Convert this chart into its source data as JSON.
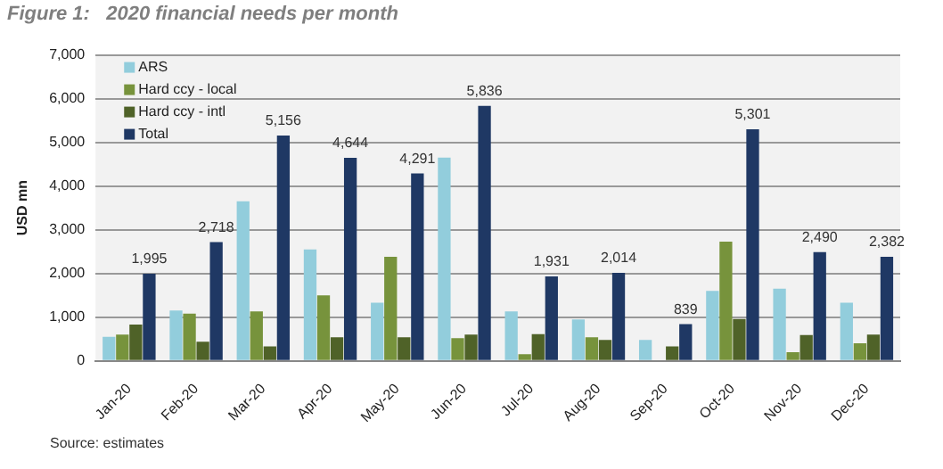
{
  "chart_data": {
    "type": "bar",
    "title": "Figure 1:   2020 financial needs per month",
    "ylabel": "USD mn",
    "categories": [
      "Jan-20",
      "Feb-20",
      "Mar-20",
      "Apr-20",
      "May-20",
      "Jun-20",
      "Jul-20",
      "Aug-20",
      "Sep-20",
      "Oct-20",
      "Nov-20",
      "Dec-20"
    ],
    "series": [
      {
        "name": "ARS",
        "color": "#92cddc",
        "values": [
          550,
          1150,
          3650,
          2550,
          1330,
          4650,
          1130,
          950,
          480,
          1600,
          1650,
          1330
        ]
      },
      {
        "name": "Hard ccy - local",
        "color": "#77933c",
        "values": [
          600,
          1080,
          1130,
          1500,
          2380,
          520,
          150,
          540,
          0,
          2730,
          200,
          400
        ]
      },
      {
        "name": "Hard ccy - intl",
        "color": "#4f6228",
        "values": [
          830,
          440,
          330,
          540,
          540,
          600,
          610,
          480,
          330,
          960,
          590,
          600
        ]
      },
      {
        "name": "Total",
        "color": "#1f3864",
        "values": [
          1995,
          2718,
          5156,
          4644,
          4291,
          5836,
          1931,
          2014,
          839,
          5301,
          2490,
          2382
        ],
        "value_labels": [
          "1,995",
          "2,718",
          "5,156",
          "4,644",
          "4,291",
          "5,836",
          "1,931",
          "2,014",
          "839",
          "5,301",
          "2,490",
          "2,382"
        ]
      }
    ],
    "ylim": [
      0,
      7000
    ],
    "yticks": [
      0,
      {
        "value": 1000,
        "label": "1,000"
      },
      {
        "value": 2000,
        "label": "2,000"
      },
      {
        "value": 3000,
        "label": "3,000"
      },
      {
        "value": 4000,
        "label": "4,000"
      },
      {
        "value": 5000,
        "label": "5,000"
      },
      {
        "value": 6000,
        "label": "6,000"
      },
      {
        "value": 7000,
        "label": "7,000"
      }
    ],
    "grid": "y",
    "legend": "top left",
    "annotations": [
      "Source: estimates"
    ]
  }
}
